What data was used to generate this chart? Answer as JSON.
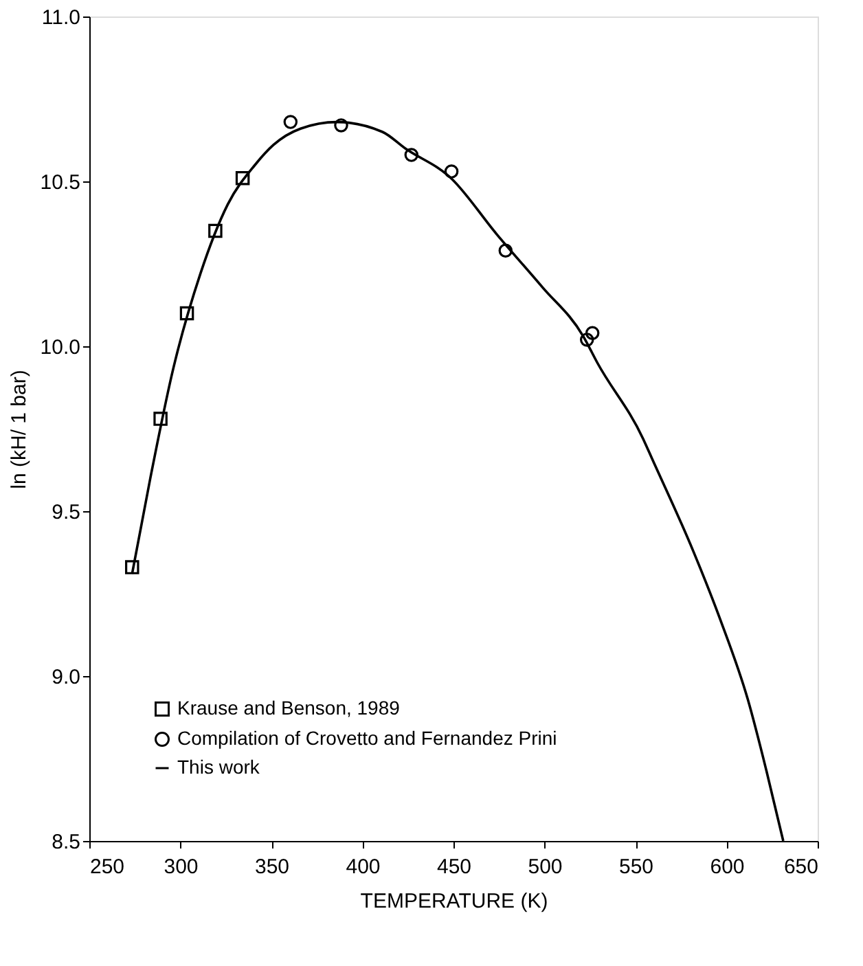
{
  "chart_data": {
    "type": "scatter",
    "xlabel": "TEMPERATURE (K)",
    "ylabel": "ln (kH/ 1 bar)",
    "xlim": [
      250,
      650
    ],
    "xticks": [
      250,
      300,
      350,
      400,
      450,
      500,
      550,
      600,
      650
    ],
    "ylim": [
      8.5,
      11.0
    ],
    "yticks": [
      {
        "value": 8.5,
        "label": "8.5"
      },
      {
        "value": 9.0,
        "label": "9.0"
      },
      {
        "value": 9.5,
        "label": "9.5"
      },
      {
        "value": 10.0,
        "label": "10.0"
      },
      {
        "value": 10.5,
        "label": "10.5"
      },
      {
        "value": 11.0,
        "label": "11.0"
      }
    ],
    "grid": false,
    "legend": "bottom left",
    "series": [
      {
        "name": "Krause and Benson, 1989",
        "marker": "square",
        "color": "#000000",
        "x": [
          273.5,
          289.1,
          303.6,
          319.2,
          334.2
        ],
        "values": [
          9.33,
          9.78,
          10.1,
          10.35,
          10.51
        ]
      },
      {
        "name": "Compilation of Crovetto and Fernandez Prini",
        "marker": "circle",
        "color": "#000000",
        "x": [
          360.5,
          388.3,
          426.9,
          448.9,
          478.6,
          523.3,
          526.3
        ],
        "values": [
          10.68,
          10.67,
          10.58,
          10.53,
          10.29,
          10.02,
          10.04
        ]
      },
      {
        "name": "This work",
        "type": "line",
        "marker": "none",
        "line_style": "solid",
        "color": "#000000",
        "x": [
          273.5,
          283.5,
          296,
          311,
          326,
          341,
          351,
          366,
          386,
          411,
          423.5,
          448.6,
          473.7,
          498.7,
          521.3,
          529,
          554.1,
          559,
          581.6,
          596.6,
          611.6,
          622,
          631.1
        ],
        "values": [
          9.31,
          9.6,
          9.93,
          10.22,
          10.43,
          10.55,
          10.61,
          10.66,
          10.68,
          10.65,
          10.6,
          10.51,
          10.34,
          10.18,
          10.03,
          9.95,
          9.72,
          9.66,
          9.38,
          9.17,
          8.93,
          8.71,
          8.5
        ]
      }
    ]
  }
}
